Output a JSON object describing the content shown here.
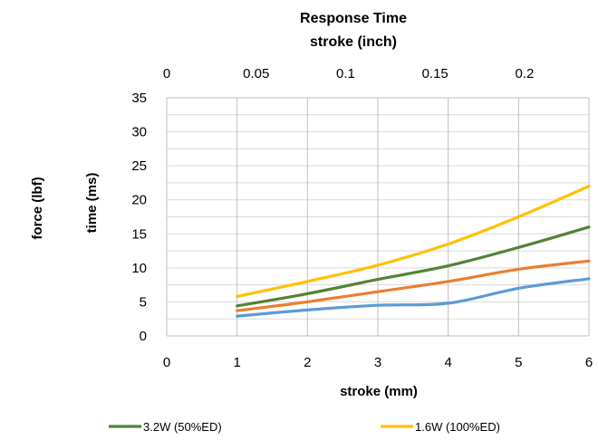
{
  "chart_data": {
    "type": "line",
    "title": "Response Time",
    "secondary_x_label": "stroke (inch)",
    "xlabel": "stroke (mm)",
    "ylabel": "time (ms)",
    "y_outer_label": "force (lbf)",
    "xlim": [
      0,
      6
    ],
    "ylim": [
      0,
      35
    ],
    "secondary_xlim": [
      0,
      0.236
    ],
    "x_ticks": [
      "0",
      "1",
      "2",
      "3",
      "4",
      "5",
      "6"
    ],
    "y_ticks": [
      "0",
      "5",
      "10",
      "15",
      "20",
      "25",
      "30",
      "35"
    ],
    "secondary_x_ticks": [
      "0",
      "0.05",
      "0.1",
      "0.15",
      "0.2"
    ],
    "grid": true,
    "legend_position": "bottom",
    "series": [
      {
        "name": "3.2W (50%ED)",
        "color": "#548235",
        "show_in_legend": true,
        "x": [
          1,
          2,
          3,
          4,
          5,
          6
        ],
        "y": [
          4.4,
          6.2,
          8.3,
          10.3,
          13.0,
          16.0
        ]
      },
      {
        "name": "1.6W (100%ED)",
        "color": "#FFC000",
        "show_in_legend": true,
        "x": [
          1,
          2,
          3,
          4,
          5,
          6
        ],
        "y": [
          5.8,
          8.0,
          10.4,
          13.5,
          17.5,
          22.0
        ]
      },
      {
        "name": "",
        "color": "#ED7D31",
        "show_in_legend": false,
        "x": [
          1,
          2,
          3,
          4,
          5,
          6
        ],
        "y": [
          3.7,
          5.0,
          6.5,
          8.0,
          9.8,
          11.0
        ]
      },
      {
        "name": "",
        "color": "#5B9BD5",
        "show_in_legend": false,
        "x": [
          1,
          2,
          3,
          4,
          5,
          6
        ],
        "y": [
          2.9,
          3.8,
          4.5,
          4.8,
          7.0,
          8.4
        ]
      }
    ]
  }
}
